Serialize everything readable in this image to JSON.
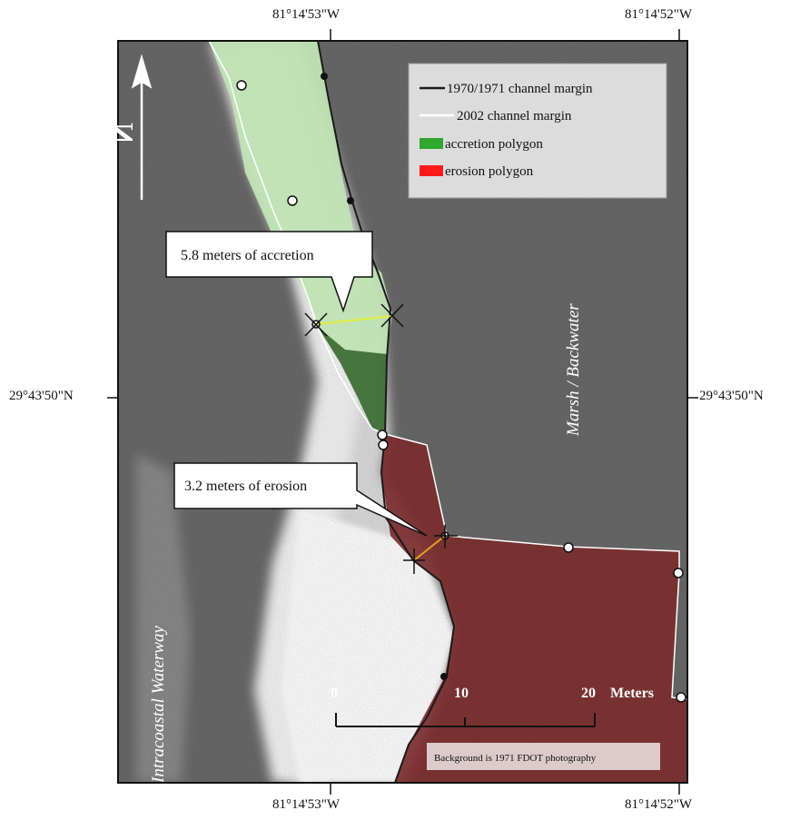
{
  "coordinates": {
    "top_left_lon": "81°14'53\"W",
    "top_right_lon": "81°14'52\"W",
    "bottom_left_lon": "81°14'53\"W",
    "bottom_right_lon": "81°14'52\"W",
    "left_lat": "29°43'50\"N",
    "right_lat": "29°43'50\"N"
  },
  "north_arrow": {
    "label": "N"
  },
  "legend": {
    "items": [
      {
        "label": "1970/1971 channel margin",
        "color": "#1a1a1a",
        "kind": "line"
      },
      {
        "label": "2002 channel margin",
        "color": "#ffffff",
        "kind": "line"
      },
      {
        "label": "accretion polygon",
        "color": "#2ea82e",
        "kind": "patch"
      },
      {
        "label": "erosion polygon",
        "color": "#ff1a1a",
        "kind": "patch"
      }
    ]
  },
  "callouts": {
    "accretion": "5.8 meters of accretion",
    "erosion": "3.2 meters of erosion"
  },
  "area_labels": {
    "marsh": "Marsh / Backwater",
    "waterway": "Intracoastal Waterway"
  },
  "scale_bar": {
    "tick_0": "0",
    "tick_10": "10",
    "tick_20": "20",
    "unit": "Meters"
  },
  "credit": "Background is 1971 FDOT photography",
  "colors": {
    "background_gray": "#5a5a5a",
    "accretion_light": "#bfe3b4",
    "accretion_dark": "#3f6f36",
    "erosion_fill": "#7a2c2c",
    "measure_accretion": "#e6ee3a",
    "measure_erosion": "#e8a020"
  }
}
